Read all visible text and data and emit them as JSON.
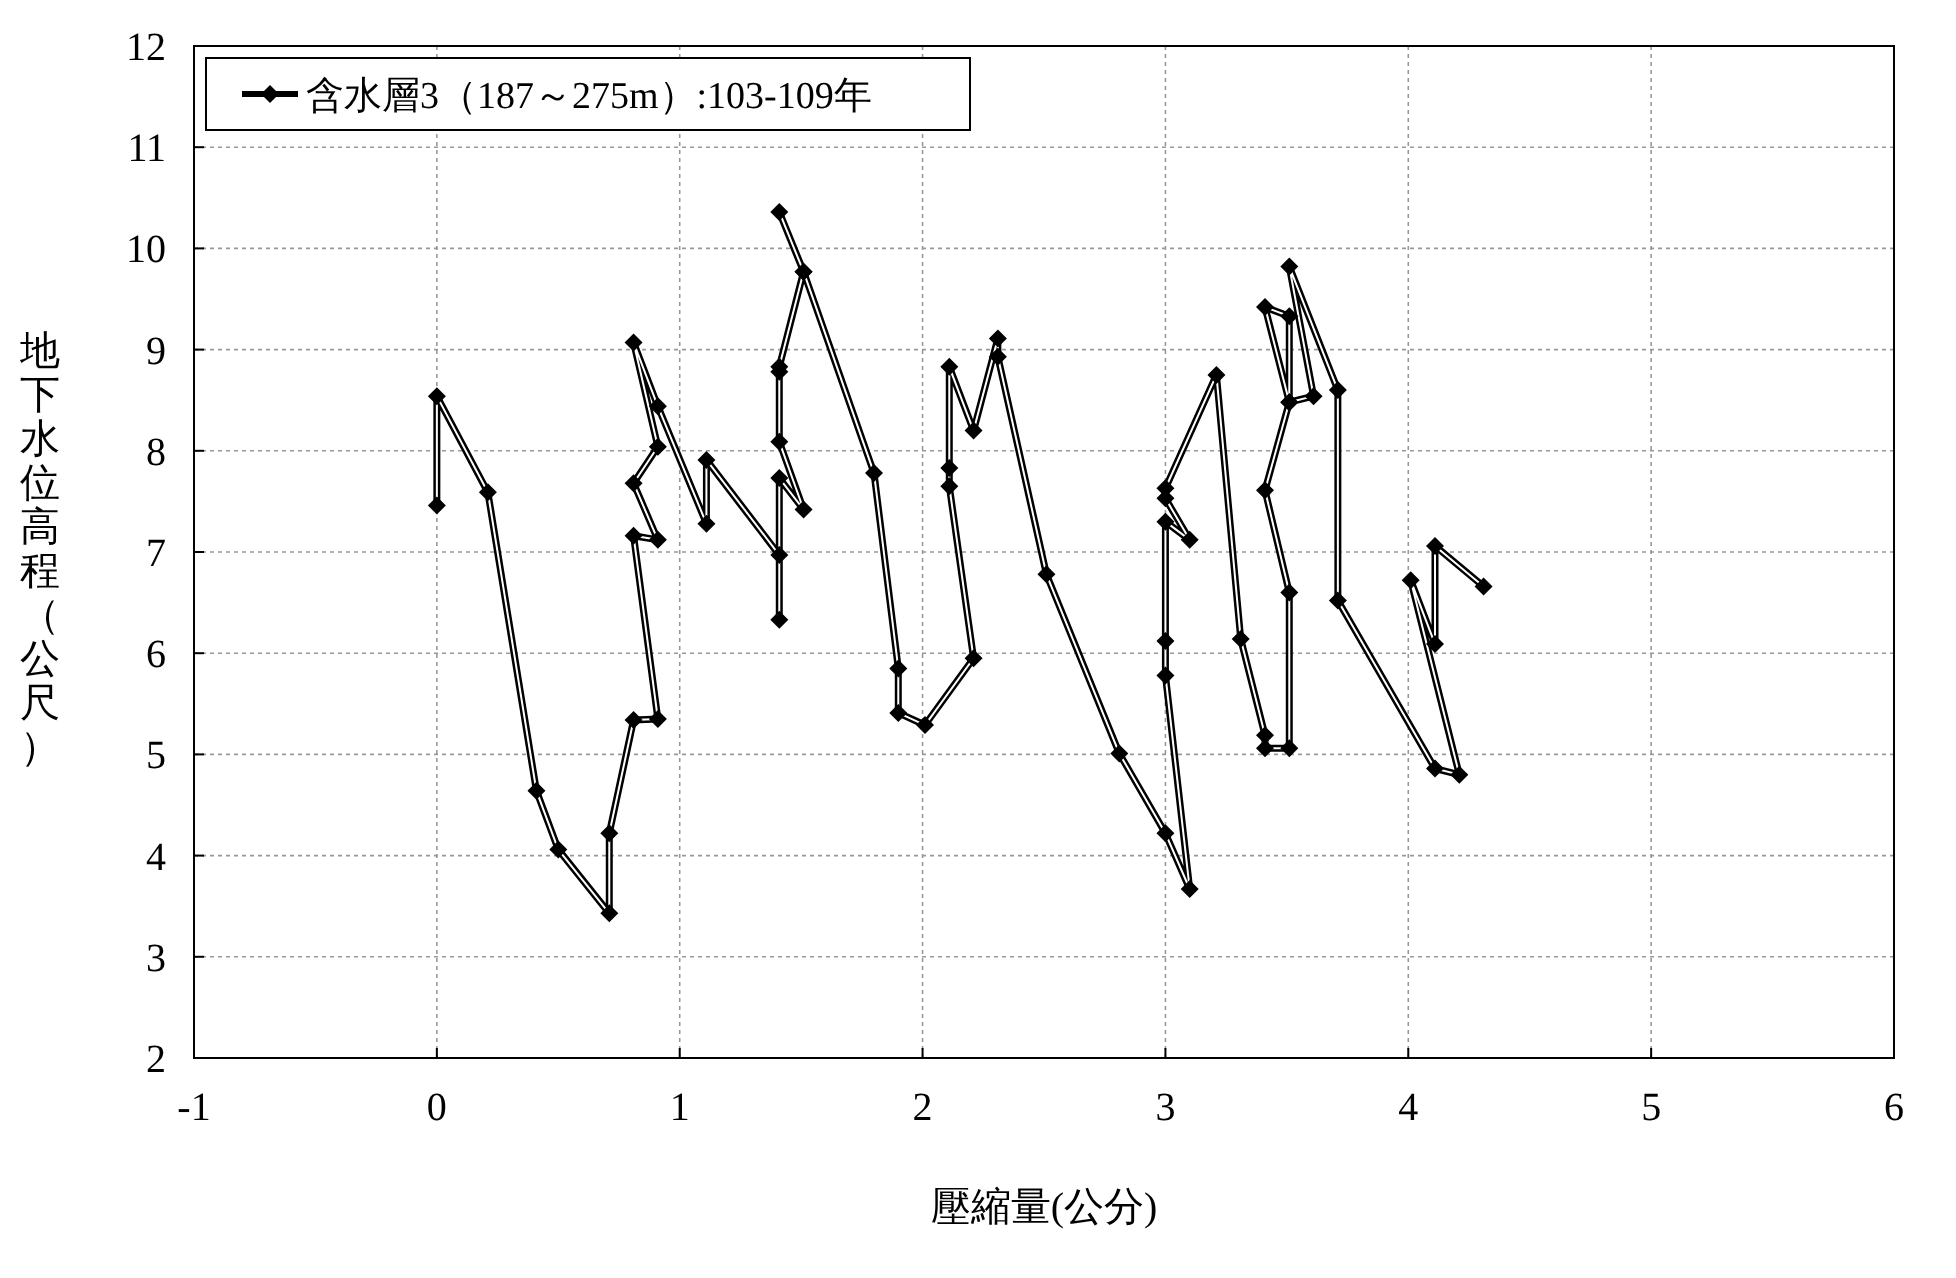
{
  "chart_data": {
    "type": "line",
    "xlabel": "壓縮量(公分)",
    "ylabel": "地下水位高程（公尺）",
    "x": [
      0.0,
      0.0,
      0.21,
      0.41,
      0.5,
      0.71,
      0.71,
      0.81,
      0.91,
      0.81,
      0.91,
      0.81,
      0.91,
      0.81,
      0.91,
      1.11,
      1.11,
      1.41,
      1.41,
      1.41,
      1.51,
      1.41,
      1.41,
      1.41,
      1.51,
      1.41,
      1.51,
      1.8,
      1.9,
      1.9,
      2.01,
      2.21,
      2.11,
      2.11,
      2.11,
      2.21,
      2.31,
      2.31,
      2.51,
      2.81,
      3.0,
      3.1,
      3.0,
      3.0,
      3.0,
      3.1,
      3.0,
      3.0,
      3.21,
      3.31,
      3.41,
      3.41,
      3.51,
      3.51,
      3.41,
      3.51,
      3.41,
      3.51,
      3.51,
      3.61,
      3.51,
      3.71,
      3.71,
      4.11,
      4.21,
      4.01,
      4.11,
      4.11,
      4.31
    ],
    "series": [
      {
        "name": "含水層3（187～275m）:103-109年",
        "color": "#000000",
        "values": [
          7.46,
          8.54,
          7.59,
          4.64,
          4.06,
          3.43,
          4.22,
          5.34,
          5.35,
          7.16,
          7.12,
          7.68,
          8.04,
          9.07,
          8.44,
          7.28,
          7.91,
          6.97,
          6.33,
          7.73,
          7.42,
          8.09,
          8.78,
          8.83,
          9.77,
          10.36,
          9.77,
          7.78,
          5.85,
          5.41,
          5.29,
          5.95,
          7.65,
          7.83,
          8.83,
          8.2,
          9.11,
          8.93,
          6.78,
          5.01,
          4.22,
          3.67,
          5.78,
          6.12,
          7.3,
          7.12,
          7.53,
          7.63,
          8.75,
          6.14,
          5.19,
          5.06,
          5.06,
          6.6,
          7.61,
          8.48,
          9.42,
          9.33,
          8.48,
          8.54,
          9.82,
          8.6,
          6.52,
          4.86,
          4.8,
          6.72,
          6.09,
          7.06,
          6.66
        ]
      }
    ],
    "xlim": [
      -1,
      6
    ],
    "xticks": [
      -1,
      0,
      1,
      2,
      3,
      4,
      5,
      6
    ],
    "ylim": [
      2,
      12
    ],
    "yticks": [
      2,
      3,
      4,
      5,
      6,
      7,
      8,
      9,
      10,
      11,
      12
    ],
    "grid": true,
    "legend": "top left",
    "marker": "diamond",
    "line_style": "solid"
  }
}
